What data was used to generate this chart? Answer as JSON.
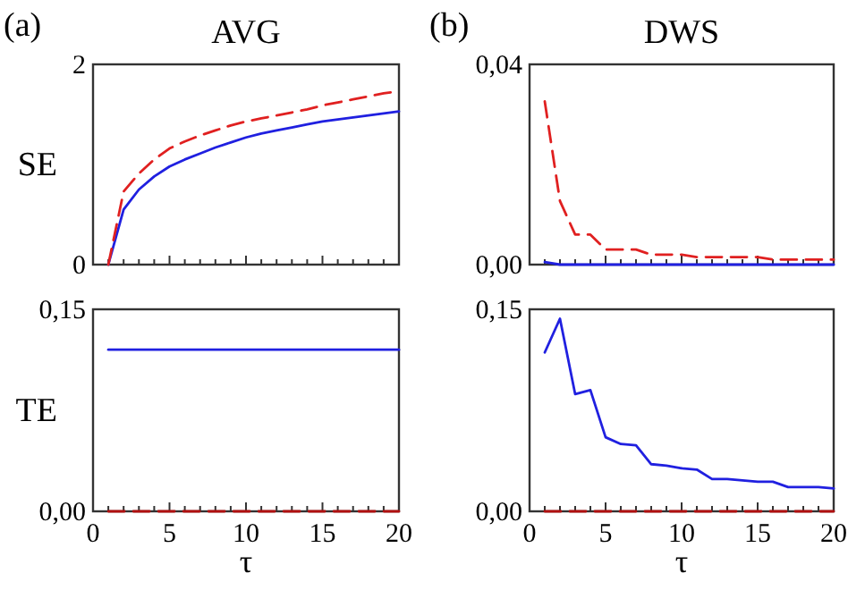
{
  "chart_data": [
    {
      "type": "line",
      "title": "AVG",
      "ylabel": "SE",
      "annotations": [
        "(a)"
      ],
      "x": [
        1,
        2,
        3,
        4,
        5,
        6,
        7,
        8,
        9,
        10,
        11,
        12,
        13,
        14,
        15,
        16,
        17,
        18,
        19,
        20
      ],
      "xlim": [
        0,
        20
      ],
      "xticks": [
        {
          "value": 0,
          "label": null
        },
        {
          "value": 1,
          "label": null
        },
        {
          "value": 2,
          "label": null
        },
        {
          "value": 3,
          "label": null
        },
        {
          "value": 4,
          "label": null
        },
        {
          "value": 5,
          "label": null
        },
        {
          "value": 6,
          "label": null
        },
        {
          "value": 7,
          "label": null
        },
        {
          "value": 8,
          "label": null
        },
        {
          "value": 9,
          "label": null
        },
        {
          "value": 10,
          "label": null
        },
        {
          "value": 11,
          "label": null
        },
        {
          "value": 12,
          "label": null
        },
        {
          "value": 13,
          "label": null
        },
        {
          "value": 14,
          "label": null
        },
        {
          "value": 15,
          "label": null
        },
        {
          "value": 16,
          "label": null
        },
        {
          "value": 17,
          "label": null
        },
        {
          "value": 18,
          "label": null
        },
        {
          "value": 19,
          "label": null
        },
        {
          "value": 20,
          "label": null
        }
      ],
      "ylim": [
        0,
        2
      ],
      "yticks": [
        0,
        2
      ],
      "tick_labels": "y",
      "grid": false,
      "series": [
        {
          "color": "#2020e0",
          "line_style": "solid",
          "values": [
            0,
            0.55,
            0.75,
            0.88,
            0.98,
            1.05,
            1.11,
            1.17,
            1.22,
            1.27,
            1.31,
            1.34,
            1.37,
            1.4,
            1.43,
            1.45,
            1.47,
            1.49,
            1.51,
            1.53
          ]
        },
        {
          "color": "#e02020",
          "line_style": "dashed",
          "values": [
            0,
            0.73,
            0.91,
            1.05,
            1.16,
            1.23,
            1.29,
            1.34,
            1.39,
            1.43,
            1.46,
            1.49,
            1.52,
            1.55,
            1.59,
            1.62,
            1.65,
            1.68,
            1.71,
            1.73
          ]
        }
      ]
    },
    {
      "type": "line",
      "title": "DWS",
      "annotations": [
        "(b)"
      ],
      "x": [
        1,
        2,
        3,
        4,
        5,
        6,
        7,
        8,
        9,
        10,
        11,
        12,
        13,
        14,
        15,
        16,
        17,
        18,
        19,
        20
      ],
      "xlim": [
        0,
        20
      ],
      "xticks": [
        {
          "value": 0,
          "label": null
        },
        {
          "value": 1,
          "label": null
        },
        {
          "value": 2,
          "label": null
        },
        {
          "value": 3,
          "label": null
        },
        {
          "value": 4,
          "label": null
        },
        {
          "value": 5,
          "label": null
        },
        {
          "value": 6,
          "label": null
        },
        {
          "value": 7,
          "label": null
        },
        {
          "value": 8,
          "label": null
        },
        {
          "value": 9,
          "label": null
        },
        {
          "value": 10,
          "label": null
        },
        {
          "value": 11,
          "label": null
        },
        {
          "value": 12,
          "label": null
        },
        {
          "value": 13,
          "label": null
        },
        {
          "value": 14,
          "label": null
        },
        {
          "value": 15,
          "label": null
        },
        {
          "value": 16,
          "label": null
        },
        {
          "value": 17,
          "label": null
        },
        {
          "value": 18,
          "label": null
        },
        {
          "value": 19,
          "label": null
        },
        {
          "value": 20,
          "label": null
        }
      ],
      "ylim": [
        0,
        0.04
      ],
      "yticks": [
        {
          "value": 0,
          "label": "0,00"
        },
        {
          "value": 0.04,
          "label": "0,04"
        }
      ],
      "tick_labels": "y",
      "grid": false,
      "series": [
        {
          "color": "#2020e0",
          "line_style": "solid",
          "values": [
            0.0005,
            0,
            0,
            0,
            0,
            0,
            0,
            0,
            0,
            0,
            0,
            0,
            0,
            0,
            0,
            0,
            0,
            0,
            0,
            0
          ]
        },
        {
          "color": "#e02020",
          "line_style": "dashed",
          "values": [
            0.0326,
            0.0127,
            0.006,
            0.006,
            0.003,
            0.003,
            0.003,
            0.002,
            0.002,
            0.002,
            0.0015,
            0.0015,
            0.0015,
            0.0015,
            0.0015,
            0.001,
            0.001,
            0.001,
            0.001,
            0.001
          ]
        }
      ]
    },
    {
      "type": "line",
      "ylabel": "TE",
      "xlabel": "τ",
      "x": [
        1,
        2,
        3,
        4,
        5,
        6,
        7,
        8,
        9,
        10,
        11,
        12,
        13,
        14,
        15,
        16,
        17,
        18,
        19,
        20
      ],
      "xlim": [
        0,
        20
      ],
      "xticks": [
        0,
        {
          "value": 1,
          "label": null
        },
        {
          "value": 2,
          "label": null
        },
        {
          "value": 3,
          "label": null
        },
        {
          "value": 4,
          "label": null
        },
        5,
        {
          "value": 6,
          "label": null
        },
        {
          "value": 7,
          "label": null
        },
        {
          "value": 8,
          "label": null
        },
        {
          "value": 9,
          "label": null
        },
        10,
        {
          "value": 11,
          "label": null
        },
        {
          "value": 12,
          "label": null
        },
        {
          "value": 13,
          "label": null
        },
        {
          "value": 14,
          "label": null
        },
        15,
        {
          "value": 16,
          "label": null
        },
        {
          "value": 17,
          "label": null
        },
        {
          "value": 18,
          "label": null
        },
        {
          "value": 19,
          "label": null
        },
        20
      ],
      "ylim": [
        0,
        0.15
      ],
      "yticks": [
        {
          "value": 0,
          "label": "0,00"
        },
        {
          "value": 0.15,
          "label": "0,15"
        }
      ],
      "grid": false,
      "series": [
        {
          "color": "#2020e0",
          "line_style": "solid",
          "values": [
            0.12,
            0.12,
            0.12,
            0.12,
            0.12,
            0.12,
            0.12,
            0.12,
            0.12,
            0.12,
            0.12,
            0.12,
            0.12,
            0.12,
            0.12,
            0.12,
            0.12,
            0.12,
            0.12,
            0.12
          ]
        },
        {
          "color": "#b01010",
          "line_style": "dashed",
          "values": [
            0,
            0,
            0,
            0,
            0,
            0,
            0,
            0,
            0,
            0,
            0,
            0,
            0,
            0,
            0,
            0,
            0,
            0,
            0,
            0
          ]
        }
      ]
    },
    {
      "type": "line",
      "xlabel": "τ",
      "x": [
        1,
        2,
        3,
        4,
        5,
        6,
        7,
        8,
        9,
        10,
        11,
        12,
        13,
        14,
        15,
        16,
        17,
        18,
        19,
        20
      ],
      "xlim": [
        0,
        20
      ],
      "xticks": [
        0,
        {
          "value": 1,
          "label": null
        },
        {
          "value": 2,
          "label": null
        },
        {
          "value": 3,
          "label": null
        },
        {
          "value": 4,
          "label": null
        },
        5,
        {
          "value": 6,
          "label": null
        },
        {
          "value": 7,
          "label": null
        },
        {
          "value": 8,
          "label": null
        },
        {
          "value": 9,
          "label": null
        },
        10,
        {
          "value": 11,
          "label": null
        },
        {
          "value": 12,
          "label": null
        },
        {
          "value": 13,
          "label": null
        },
        {
          "value": 14,
          "label": null
        },
        15,
        {
          "value": 16,
          "label": null
        },
        {
          "value": 17,
          "label": null
        },
        {
          "value": 18,
          "label": null
        },
        {
          "value": 19,
          "label": null
        },
        20
      ],
      "ylim": [
        0,
        0.15
      ],
      "yticks": [
        {
          "value": 0,
          "label": "0,00"
        },
        {
          "value": 0.15,
          "label": "0,15"
        }
      ],
      "grid": false,
      "series": [
        {
          "color": "#2020e0",
          "line_style": "solid",
          "values": [
            0.118,
            0.143,
            0.087,
            0.09,
            0.055,
            0.05,
            0.049,
            0.035,
            0.034,
            0.032,
            0.031,
            0.024,
            0.024,
            0.023,
            0.022,
            0.022,
            0.018,
            0.018,
            0.018,
            0.017
          ]
        },
        {
          "color": "#b01010",
          "line_style": "dashed",
          "values": [
            0,
            0,
            0,
            0,
            0,
            0,
            0,
            0,
            0,
            0,
            0,
            0,
            0,
            0,
            0,
            0,
            0,
            0,
            0,
            0
          ]
        }
      ]
    }
  ]
}
